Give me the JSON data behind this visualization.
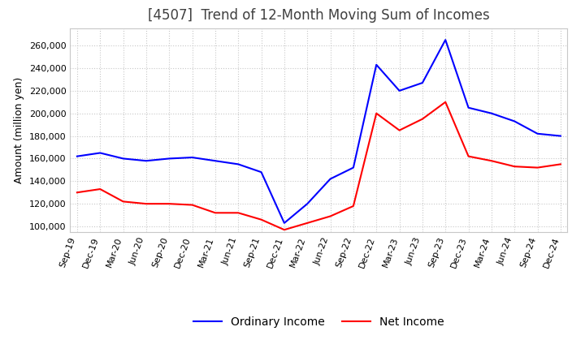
{
  "title": "[4507]  Trend of 12-Month Moving Sum of Incomes",
  "ylabel": "Amount (million yen)",
  "background_color": "#ffffff",
  "plot_bg_color": "#ffffff",
  "grid_color": "#c8c8c8",
  "ordinary_income_color": "#0000ff",
  "net_income_color": "#ff0000",
  "x_labels": [
    "Sep-19",
    "Dec-19",
    "Mar-20",
    "Jun-20",
    "Sep-20",
    "Dec-20",
    "Mar-21",
    "Jun-21",
    "Sep-21",
    "Dec-21",
    "Mar-22",
    "Jun-22",
    "Sep-22",
    "Dec-22",
    "Mar-23",
    "Jun-23",
    "Sep-23",
    "Dec-23",
    "Mar-24",
    "Jun-24",
    "Sep-24",
    "Dec-24"
  ],
  "ordinary_income": [
    162000,
    165000,
    160000,
    158000,
    160000,
    161000,
    158000,
    155000,
    148000,
    103000,
    120000,
    142000,
    152000,
    243000,
    220000,
    227000,
    265000,
    205000,
    200000,
    193000,
    182000,
    180000
  ],
  "net_income": [
    130000,
    133000,
    122000,
    120000,
    120000,
    119000,
    112000,
    112000,
    106000,
    97000,
    103000,
    109000,
    118000,
    200000,
    185000,
    195000,
    210000,
    162000,
    158000,
    153000,
    152000,
    155000
  ],
  "ylim": [
    95000,
    275000
  ],
  "yticks": [
    100000,
    120000,
    140000,
    160000,
    180000,
    200000,
    220000,
    240000,
    260000
  ],
  "legend_labels": [
    "Ordinary Income",
    "Net Income"
  ],
  "title_fontsize": 12,
  "label_fontsize": 9,
  "tick_fontsize": 8
}
